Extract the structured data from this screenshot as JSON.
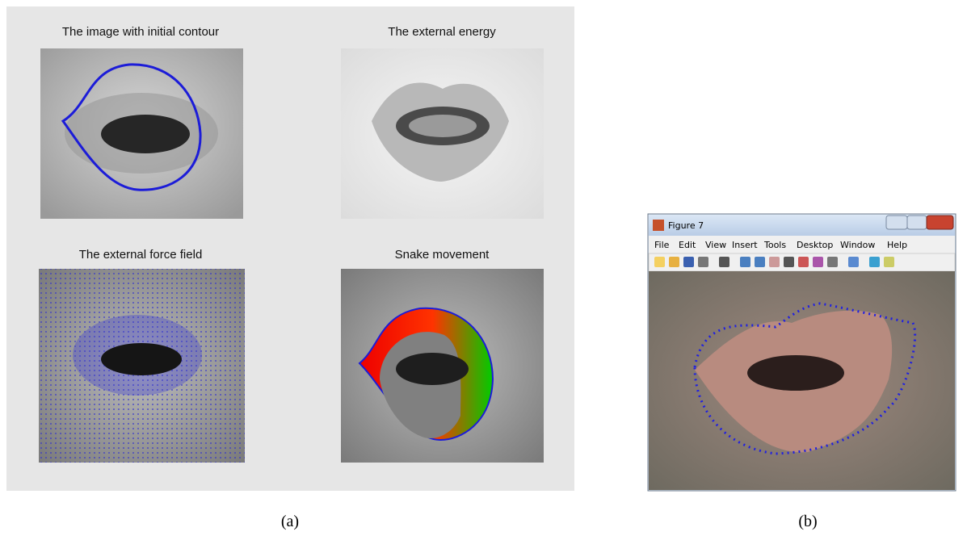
{
  "panel_a": {
    "titles": [
      "The image with initial contour",
      "The external energy",
      "The external force field",
      "Snake movement"
    ]
  },
  "window": {
    "title": "Figure 7",
    "menu": [
      "File",
      "Edit",
      "View",
      "Insert",
      "Tools",
      "Desktop",
      "Window",
      "Help"
    ]
  },
  "captions": [
    "(a)",
    "(b)"
  ]
}
